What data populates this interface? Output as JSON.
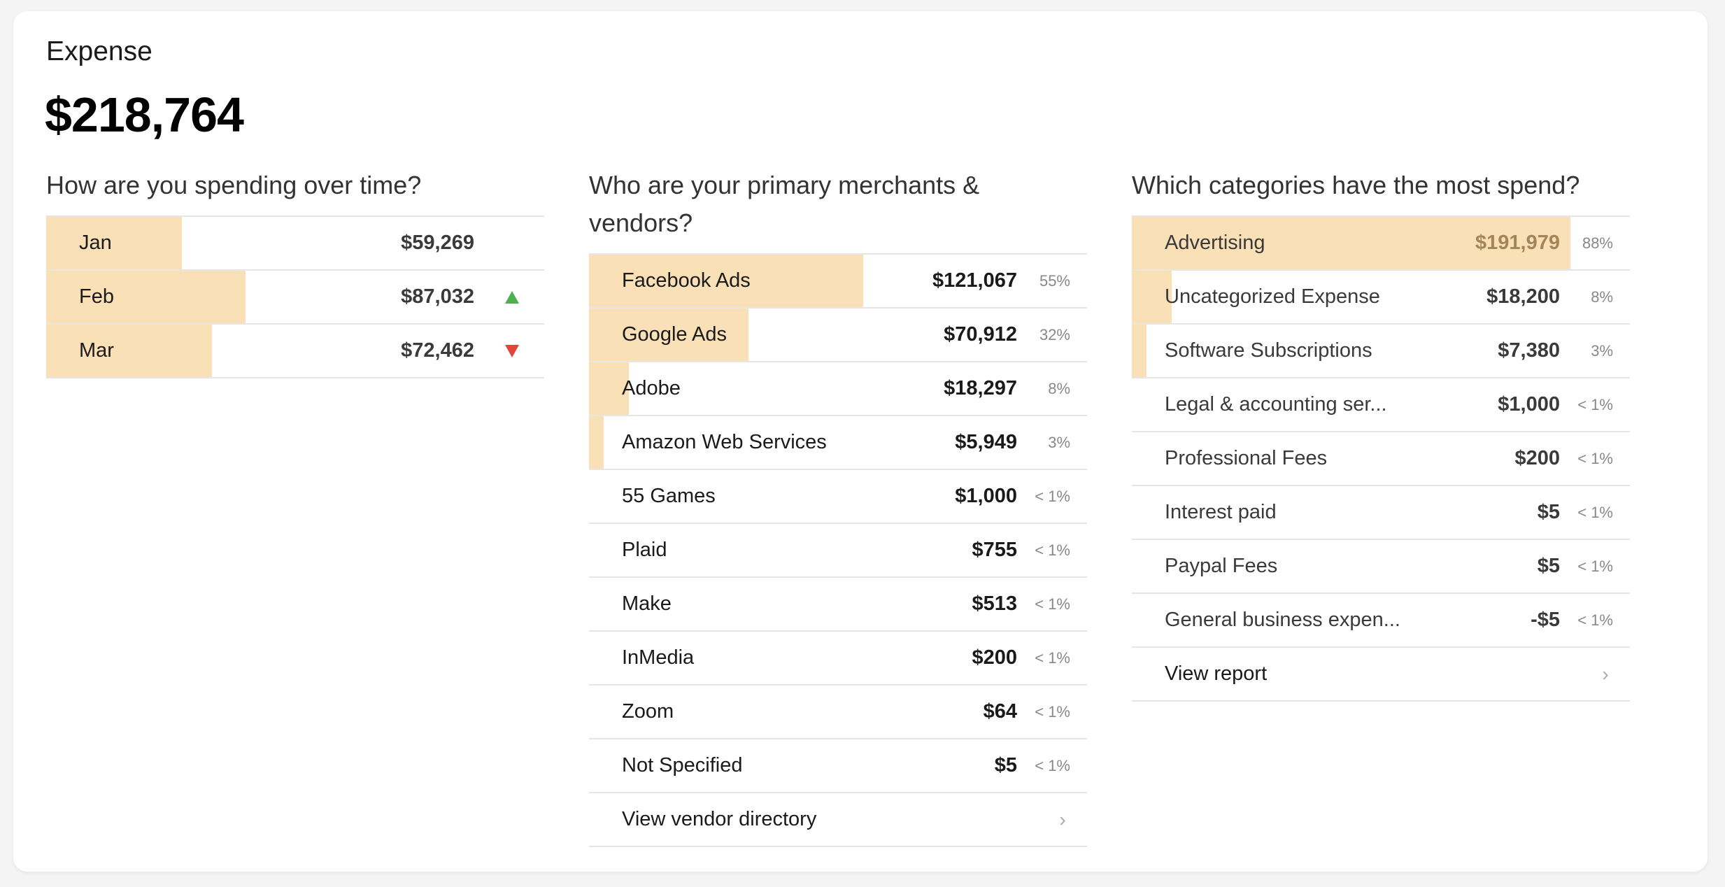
{
  "header": {
    "title": "Expense",
    "total": "$218,764"
  },
  "over_time": {
    "title": "How are you spending over time?",
    "rows": [
      {
        "label": "Jan",
        "amount": "$59,269",
        "trend": null,
        "value": 59269
      },
      {
        "label": "Feb",
        "amount": "$87,032",
        "trend": "up",
        "value": 87032
      },
      {
        "label": "Mar",
        "amount": "$72,462",
        "trend": "down",
        "value": 72462
      }
    ],
    "colors": {
      "up": "#4caf50",
      "down": "#e0473a",
      "bar": "#fae0b6"
    }
  },
  "merchants": {
    "title": "Who are your primary merchants & vendors?",
    "rows": [
      {
        "label": "Facebook Ads",
        "amount": "$121,067",
        "pct": "55%",
        "share": 0.55
      },
      {
        "label": "Google Ads",
        "amount": "$70,912",
        "pct": "32%",
        "share": 0.32
      },
      {
        "label": "Adobe",
        "amount": "$18,297",
        "pct": "8%",
        "share": 0.08
      },
      {
        "label": "Amazon Web Services",
        "amount": "$5,949",
        "pct": "3%",
        "share": 0.03
      },
      {
        "label": "55 Games",
        "amount": "$1,000",
        "pct": "< 1%",
        "share": 0
      },
      {
        "label": "Plaid",
        "amount": "$755",
        "pct": "< 1%",
        "share": 0
      },
      {
        "label": "Make",
        "amount": "$513",
        "pct": "< 1%",
        "share": 0
      },
      {
        "label": "InMedia",
        "amount": "$200",
        "pct": "< 1%",
        "share": 0
      },
      {
        "label": "Zoom",
        "amount": "$64",
        "pct": "< 1%",
        "share": 0
      },
      {
        "label": "Not Specified",
        "amount": "$5",
        "pct": "< 1%",
        "share": 0
      }
    ],
    "link_label": "View vendor directory",
    "chevron_icon": "chevron-right-icon"
  },
  "categories": {
    "title": "Which categories have the most spend?",
    "rows": [
      {
        "label": "Advertising",
        "amount": "$191,979",
        "pct": "88%",
        "share": 0.88,
        "highlight": true
      },
      {
        "label": "Uncategorized Expense",
        "amount": "$18,200",
        "pct": "8%",
        "share": 0.08
      },
      {
        "label": "Software Subscriptions",
        "amount": "$7,380",
        "pct": "3%",
        "share": 0.03
      },
      {
        "label": "Legal & accounting ser...",
        "amount": "$1,000",
        "pct": "< 1%",
        "share": 0
      },
      {
        "label": "Professional Fees",
        "amount": "$200",
        "pct": "< 1%",
        "share": 0
      },
      {
        "label": "Interest paid",
        "amount": "$5",
        "pct": "< 1%",
        "share": 0
      },
      {
        "label": "Paypal Fees",
        "amount": "$5",
        "pct": "< 1%",
        "share": 0
      },
      {
        "label": "General business expen...",
        "amount": "-$5",
        "pct": "< 1%",
        "share": 0
      }
    ],
    "link_label": "View report",
    "chevron_icon": "chevron-right-icon"
  }
}
